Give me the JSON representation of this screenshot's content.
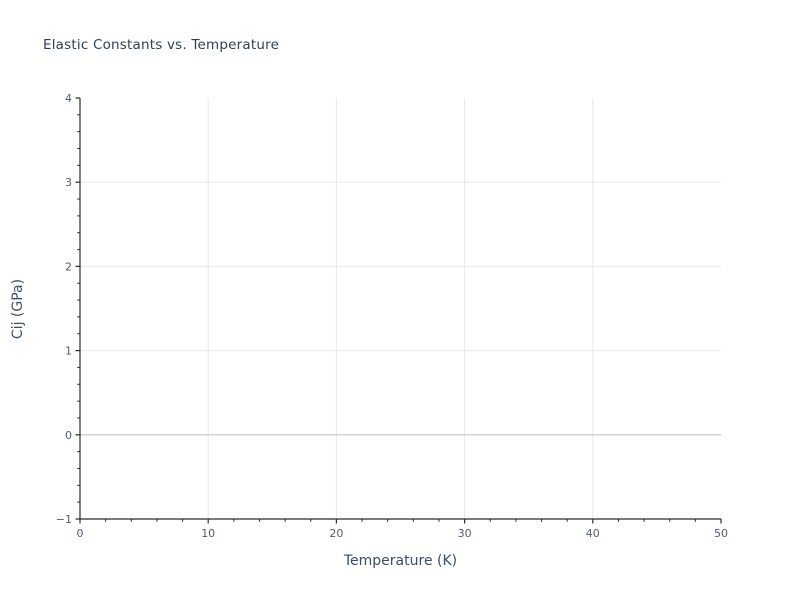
{
  "figure": {
    "title": "Elastic Constants vs. Temperature"
  },
  "chart_data": {
    "type": "line",
    "title": "Elastic Constants vs. Temperature",
    "xlabel": "Temperature (K)",
    "ylabel": "Cij (GPa)",
    "xlim": [
      0,
      50
    ],
    "ylim": [
      -1,
      4
    ],
    "xticks": [
      0,
      10,
      20,
      30,
      40,
      50
    ],
    "yticks": [
      -1,
      0,
      1,
      2,
      3,
      4
    ],
    "x_minor_step": 2,
    "y_minor_step": 0.2,
    "x_gridlines": [
      10,
      20,
      30,
      40
    ],
    "y_gridlines": [
      0,
      1,
      2,
      3
    ],
    "zero_gridline": 0,
    "grid": true,
    "legend": null,
    "series": []
  },
  "colors": {
    "title": "#2a3f5f",
    "axis_label": "#3b4d6b",
    "tick_label": "#4f5d78",
    "spine": "#2b2b2b",
    "grid": "#e8e8e8",
    "zero_grid": "#d2d2d2",
    "background": "#ffffff"
  }
}
